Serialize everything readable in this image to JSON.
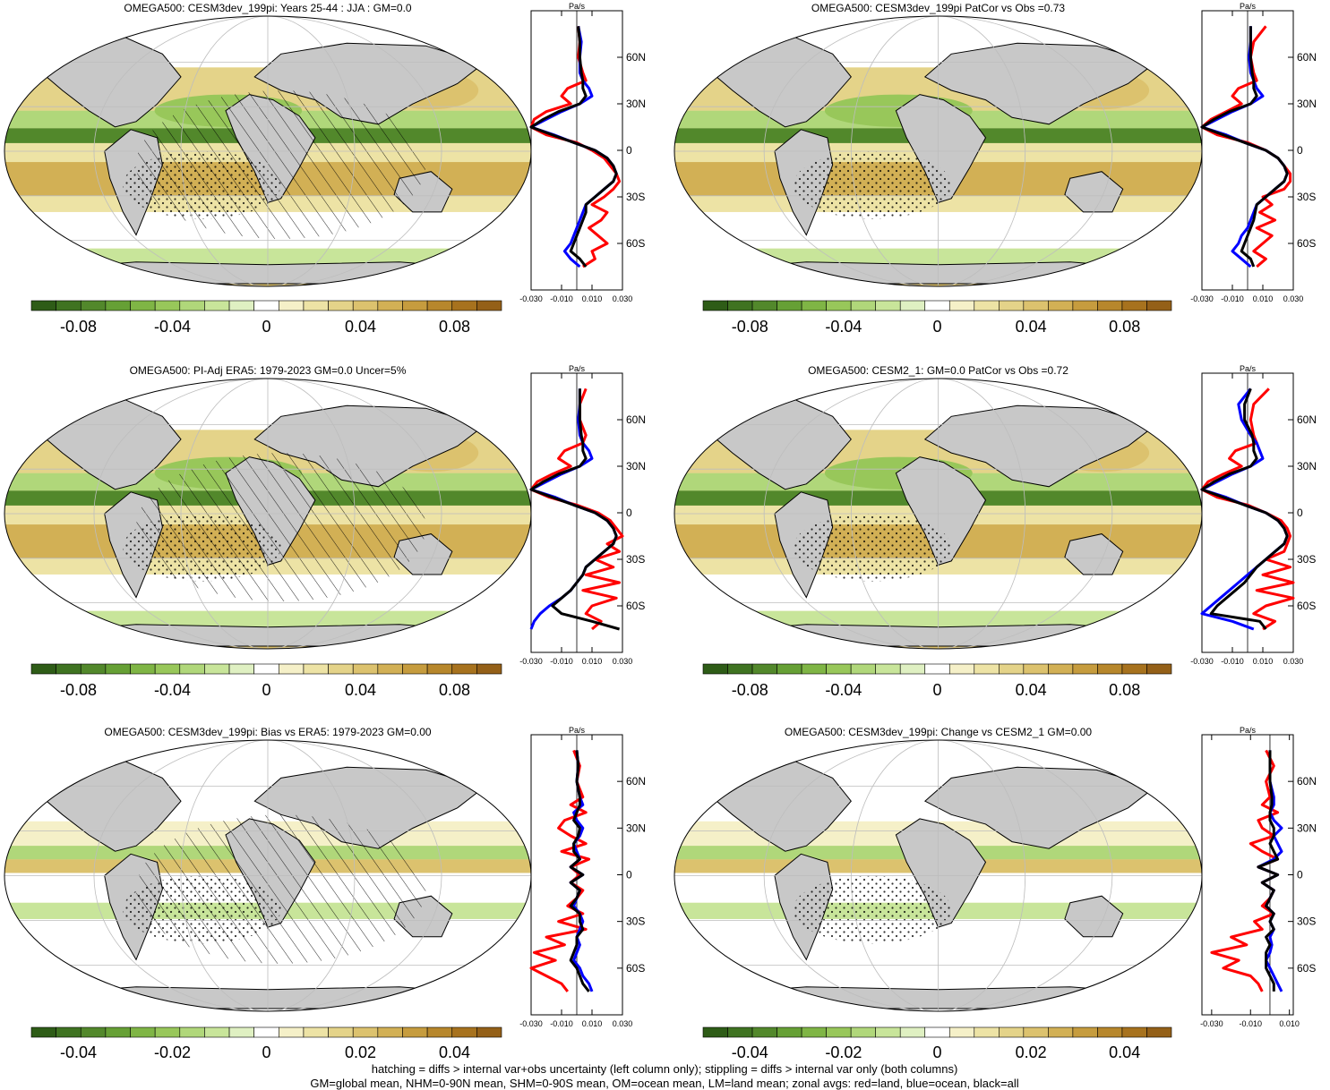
{
  "figure": {
    "footer_line1": "hatching = diffs > internal var+obs uncertainty (left column only); stippling = diffs > internal var only (both columns)",
    "footer_line2": "GM=global mean, NHM=0-90N mean, SHM=0-90S mean, OM=ocean mean, LM=land mean; zonal avgs: red=land, blue=ocean, black=all"
  },
  "colors": {
    "land_mask": "#c8c8c8",
    "zonal_land": "#ff0000",
    "zonal_ocean": "#0000ff",
    "zonal_all": "#000000",
    "palette": [
      "#2e5c17",
      "#3f7321",
      "#52882b",
      "#66a035",
      "#7fb545",
      "#98c75a",
      "#b0d77a",
      "#c8e59a",
      "#dff0c2",
      "#ffffff",
      "#f5f0c8",
      "#ede3a5",
      "#e4d389",
      "#dcc26e",
      "#d2b055",
      "#c69c3e",
      "#b7872c",
      "#a7721e",
      "#946018"
    ]
  },
  "chart_data": [
    {
      "type": "map",
      "title": "OMEGA500: CESM3dev_199pi: Years 25-44 : JJA : GM=0.0",
      "colorbar_ticks": [
        "-0.08",
        "-0.04",
        "0",
        "0.04",
        "0.08"
      ],
      "colorbar_range": [
        -0.1,
        0.1
      ],
      "hatching": true,
      "zonal": {
        "units": "Pa/s",
        "xlim": [
          -0.03,
          0.03
        ],
        "x_tick_labels": [
          "-0.030",
          "-0.010",
          "0.010",
          "0.030"
        ],
        "lat_tick_labels": [
          "60N",
          "30N",
          "0",
          "30S",
          "60S"
        ],
        "lat_ticks": [
          60,
          30,
          0,
          -30,
          -60
        ],
        "lat": [
          80,
          70,
          60,
          50,
          45,
          40,
          35,
          30,
          25,
          20,
          15,
          10,
          5,
          0,
          -5,
          -10,
          -15,
          -20,
          -25,
          -30,
          -35,
          -40,
          -45,
          -50,
          -55,
          -60,
          -65,
          -70,
          -75
        ],
        "land": [
          0.001,
          0.002,
          0.001,
          0.004,
          0.006,
          -0.006,
          -0.01,
          -0.004,
          -0.02,
          -0.028,
          -0.03,
          -0.02,
          0.0,
          0.01,
          0.018,
          0.022,
          0.026,
          0.028,
          0.024,
          0.018,
          0.01,
          0.02,
          0.016,
          0.008,
          0.014,
          0.02,
          0.01,
          0.012,
          0.004
        ],
        "ocean": [
          0.001,
          0.003,
          0.002,
          0.002,
          0.004,
          0.008,
          0.01,
          0.002,
          -0.01,
          -0.02,
          -0.03,
          -0.015,
          -0.002,
          0.012,
          0.02,
          0.024,
          0.026,
          0.024,
          0.018,
          0.012,
          0.006,
          0.004,
          0.002,
          0.0,
          -0.002,
          -0.004,
          -0.008,
          -0.004,
          0.002
        ],
        "all": [
          0.001,
          0.002,
          0.002,
          0.003,
          0.004,
          0.004,
          0.006,
          0.002,
          -0.012,
          -0.022,
          -0.03,
          -0.016,
          -0.002,
          0.012,
          0.02,
          0.024,
          0.026,
          0.024,
          0.018,
          0.012,
          0.006,
          0.006,
          0.004,
          0.002,
          0.0,
          -0.002,
          -0.004,
          0.002,
          0.006
        ]
      }
    },
    {
      "type": "map",
      "title": "OMEGA500: CESM3dev_199pi PatCor vs Obs =0.73",
      "colorbar_ticks": [
        "-0.08",
        "-0.04",
        "0",
        "0.04",
        "0.08"
      ],
      "colorbar_range": [
        -0.1,
        0.1
      ],
      "hatching": false,
      "zonal": {
        "units": "Pa/s",
        "xlim": [
          -0.03,
          0.03
        ],
        "x_tick_labels": [
          "-0.030",
          "-0.010",
          "0.010",
          "0.030"
        ],
        "lat_tick_labels": [
          "60N",
          "30N",
          "0",
          "30S",
          "60S"
        ],
        "lat_ticks": [
          60,
          30,
          0,
          -30,
          -60
        ],
        "lat": [
          80,
          70,
          60,
          50,
          45,
          40,
          35,
          30,
          25,
          20,
          15,
          10,
          5,
          0,
          -5,
          -10,
          -15,
          -20,
          -25,
          -30,
          -35,
          -40,
          -45,
          -50,
          -55,
          -60,
          -65,
          -70,
          -75
        ],
        "land": [
          0.012,
          0.004,
          0.002,
          0.004,
          0.006,
          -0.006,
          -0.01,
          -0.004,
          -0.014,
          -0.024,
          -0.03,
          -0.02,
          0.0,
          0.012,
          0.02,
          0.024,
          0.028,
          0.028,
          0.024,
          0.01,
          0.016,
          0.008,
          0.018,
          0.006,
          0.016,
          0.01,
          0.004,
          0.012,
          0.006
        ],
        "ocean": [
          0.002,
          0.002,
          0.001,
          0.002,
          0.004,
          0.006,
          0.01,
          0.002,
          -0.01,
          -0.02,
          -0.03,
          -0.014,
          -0.002,
          0.012,
          0.02,
          0.024,
          0.026,
          0.024,
          0.018,
          0.012,
          0.006,
          0.004,
          0.002,
          0.0,
          -0.004,
          -0.006,
          -0.01,
          -0.004,
          0.002
        ],
        "all": [
          0.002,
          0.002,
          0.002,
          0.003,
          0.004,
          0.004,
          0.006,
          0.002,
          -0.012,
          -0.022,
          -0.03,
          -0.016,
          -0.002,
          0.012,
          0.02,
          0.024,
          0.026,
          0.024,
          0.018,
          0.012,
          0.006,
          0.005,
          0.004,
          0.002,
          0.0,
          -0.002,
          -0.004,
          0.002,
          0.004
        ]
      }
    },
    {
      "type": "map",
      "title": "OMEGA500: PI-Adj ERA5: 1979-2023 GM=0.0 Uncer=5%",
      "colorbar_ticks": [
        "-0.08",
        "-0.04",
        "0",
        "0.04",
        "0.08"
      ],
      "colorbar_range": [
        -0.1,
        0.1
      ],
      "hatching": true,
      "zonal": {
        "units": "Pa/s",
        "xlim": [
          -0.03,
          0.03
        ],
        "x_tick_labels": [
          "-0.030",
          "-0.010",
          "0.010",
          "0.030"
        ],
        "lat_tick_labels": [
          "60N",
          "30N",
          "0",
          "30S",
          "60S"
        ],
        "lat_ticks": [
          60,
          30,
          0,
          -30,
          -60
        ],
        "lat": [
          80,
          70,
          60,
          50,
          45,
          40,
          35,
          30,
          25,
          20,
          15,
          10,
          5,
          0,
          -5,
          -10,
          -15,
          -20,
          -25,
          -30,
          -35,
          -40,
          -45,
          -50,
          -55,
          -60,
          -65,
          -70,
          -75
        ],
        "land": [
          0.006,
          0.002,
          0.002,
          0.006,
          0.004,
          -0.008,
          -0.012,
          -0.004,
          -0.016,
          -0.026,
          -0.03,
          -0.018,
          0.0,
          0.014,
          0.022,
          0.026,
          0.03,
          0.02,
          0.028,
          0.012,
          0.024,
          0.006,
          0.028,
          0.004,
          0.026,
          0.01,
          0.006,
          0.016,
          0.01
        ],
        "ocean": [
          0.002,
          0.002,
          0.001,
          0.002,
          0.004,
          0.008,
          0.01,
          0.002,
          -0.01,
          -0.02,
          -0.03,
          -0.014,
          -0.002,
          0.012,
          0.02,
          0.024,
          0.026,
          0.024,
          0.018,
          0.012,
          0.006,
          0.004,
          0.0,
          -0.004,
          -0.01,
          -0.018,
          -0.024,
          -0.028,
          -0.03
        ],
        "all": [
          0.002,
          0.002,
          0.002,
          0.003,
          0.004,
          0.004,
          0.006,
          0.002,
          -0.012,
          -0.022,
          -0.03,
          -0.016,
          -0.002,
          0.012,
          0.02,
          0.024,
          0.026,
          0.024,
          0.018,
          0.012,
          0.006,
          0.004,
          0.0,
          -0.004,
          -0.01,
          -0.016,
          -0.01,
          0.01,
          0.028
        ]
      }
    },
    {
      "type": "map",
      "title": "OMEGA500: CESM2_1: GM=0.0 PatCor vs Obs =0.72",
      "colorbar_ticks": [
        "-0.08",
        "-0.04",
        "0",
        "0.04",
        "0.08"
      ],
      "colorbar_range": [
        -0.1,
        0.1
      ],
      "hatching": false,
      "zonal": {
        "units": "Pa/s",
        "xlim": [
          -0.03,
          0.03
        ],
        "x_tick_labels": [
          "-0.030",
          "-0.010",
          "0.010",
          "0.030"
        ],
        "lat_tick_labels": [
          "60N",
          "30N",
          "0",
          "30S",
          "60S"
        ],
        "lat_ticks": [
          60,
          30,
          0,
          -30,
          -60
        ],
        "lat": [
          80,
          70,
          60,
          50,
          45,
          40,
          35,
          30,
          25,
          20,
          15,
          10,
          5,
          0,
          -5,
          -10,
          -15,
          -20,
          -25,
          -30,
          -35,
          -40,
          -45,
          -50,
          -55,
          -60,
          -65,
          -70,
          -75
        ],
        "land": [
          0.014,
          0.004,
          0.002,
          0.004,
          0.006,
          -0.008,
          -0.012,
          -0.004,
          -0.016,
          -0.026,
          -0.03,
          -0.02,
          0.0,
          0.012,
          0.022,
          0.026,
          0.028,
          0.026,
          0.024,
          0.012,
          0.028,
          0.01,
          0.03,
          0.006,
          0.03,
          0.012,
          0.004,
          0.018,
          0.01
        ],
        "ocean": [
          0.002,
          -0.006,
          -0.004,
          0.002,
          0.006,
          0.008,
          0.01,
          0.002,
          -0.01,
          -0.02,
          -0.03,
          -0.014,
          -0.002,
          0.012,
          0.02,
          0.024,
          0.026,
          0.024,
          0.018,
          0.012,
          0.006,
          0.0,
          -0.006,
          -0.012,
          -0.018,
          -0.024,
          -0.03,
          -0.01,
          0.004
        ],
        "all": [
          0.002,
          -0.002,
          -0.002,
          0.003,
          0.004,
          0.004,
          0.006,
          0.002,
          -0.012,
          -0.022,
          -0.03,
          -0.016,
          -0.002,
          0.012,
          0.02,
          0.024,
          0.026,
          0.024,
          0.018,
          0.012,
          0.006,
          0.002,
          -0.002,
          -0.008,
          -0.014,
          -0.02,
          -0.024,
          0.008,
          0.012
        ]
      }
    },
    {
      "type": "map",
      "title": "OMEGA500: CESM3dev_199pi: Bias vs ERA5: 1979-2023 GM=0.00",
      "colorbar_ticks": [
        "-0.04",
        "-0.02",
        "0",
        "0.02",
        "0.04"
      ],
      "colorbar_range": [
        -0.05,
        0.05
      ],
      "hatching": true,
      "zonal": {
        "units": "Pa/s",
        "xlim": [
          -0.03,
          0.03
        ],
        "x_tick_labels": [
          "-0.030",
          "-0.010",
          "0.010",
          "0.030"
        ],
        "lat_tick_labels": [
          "60N",
          "30N",
          "0",
          "30S",
          "60S"
        ],
        "lat_ticks": [
          60,
          30,
          0,
          -30,
          -60
        ],
        "lat": [
          80,
          70,
          60,
          50,
          45,
          40,
          35,
          30,
          25,
          20,
          15,
          10,
          5,
          0,
          -5,
          -10,
          -15,
          -20,
          -25,
          -30,
          -35,
          -40,
          -45,
          -50,
          -55,
          -60,
          -65,
          -70,
          -75
        ],
        "land": [
          -0.002,
          0.002,
          0.0,
          0.004,
          -0.004,
          0.006,
          -0.008,
          -0.012,
          -0.004,
          0.006,
          -0.01,
          0.008,
          -0.004,
          0.002,
          -0.004,
          0.004,
          0.0,
          -0.006,
          0.004,
          -0.012,
          0.006,
          -0.02,
          -0.008,
          -0.028,
          -0.014,
          -0.03,
          -0.02,
          -0.01,
          -0.006
        ],
        "ocean": [
          0.0,
          0.001,
          0.0,
          0.002,
          0.004,
          -0.002,
          0.0,
          0.004,
          0.002,
          -0.002,
          0.0,
          0.002,
          -0.004,
          0.004,
          -0.004,
          0.002,
          0.0,
          -0.002,
          0.002,
          0.004,
          0.002,
          0.0,
          0.002,
          0.0,
          -0.002,
          0.002,
          0.004,
          0.008,
          0.01
        ],
        "all": [
          0.0,
          0.001,
          0.0,
          0.002,
          0.002,
          0.0,
          -0.002,
          0.002,
          0.001,
          -0.002,
          -0.002,
          0.002,
          -0.004,
          0.004,
          -0.004,
          0.002,
          0.0,
          -0.004,
          0.002,
          0.002,
          0.004,
          0.0,
          0.0,
          -0.002,
          -0.004,
          0.0,
          0.002,
          0.004,
          0.008
        ]
      }
    },
    {
      "type": "map",
      "title": "OMEGA500: CESM3dev_199pi: Change vs CESM2_1 GM=0.00",
      "colorbar_ticks": [
        "-0.04",
        "-0.02",
        "0",
        "0.02",
        "0.04"
      ],
      "colorbar_range": [
        -0.05,
        0.05
      ],
      "hatching": false,
      "zonal": {
        "units": "Pa/s",
        "xlim": [
          -0.035,
          0.012
        ],
        "x_tick_labels": [
          "-0.030",
          "-0.010",
          "0.010"
        ],
        "lat_tick_labels": [
          "60N",
          "30N",
          "0",
          "30S",
          "60S"
        ],
        "lat_ticks": [
          60,
          30,
          0,
          -30,
          -60
        ],
        "lat": [
          80,
          70,
          60,
          50,
          45,
          40,
          35,
          30,
          25,
          20,
          15,
          10,
          5,
          0,
          -5,
          -10,
          -15,
          -20,
          -25,
          -30,
          -35,
          -40,
          -45,
          -50,
          -55,
          -60,
          -65,
          -70,
          -75
        ],
        "land": [
          -0.002,
          0.002,
          -0.002,
          0.0,
          -0.004,
          0.004,
          -0.006,
          -0.004,
          0.002,
          -0.01,
          -0.004,
          0.004,
          -0.006,
          0.004,
          -0.004,
          0.002,
          0.0,
          -0.004,
          0.002,
          -0.008,
          -0.004,
          -0.02,
          -0.012,
          -0.03,
          -0.016,
          -0.024,
          -0.01,
          -0.006,
          -0.004
        ],
        "ocean": [
          0.0,
          0.0,
          0.0,
          0.002,
          0.002,
          0.0,
          0.002,
          0.006,
          0.002,
          0.004,
          0.006,
          0.002,
          -0.006,
          0.004,
          -0.004,
          0.002,
          0.0,
          -0.002,
          0.002,
          0.0,
          0.002,
          0.0,
          0.001,
          0.0,
          -0.002,
          0.0,
          0.002,
          0.004,
          0.006
        ],
        "all": [
          0.0,
          0.0,
          0.0,
          0.001,
          0.001,
          0.0,
          0.0,
          0.002,
          0.002,
          0.0,
          0.002,
          0.004,
          -0.006,
          0.004,
          -0.004,
          0.002,
          0.0,
          -0.002,
          0.002,
          0.0,
          0.002,
          -0.002,
          0.0,
          -0.002,
          -0.002,
          -0.002,
          0.0,
          0.002,
          0.002
        ]
      }
    }
  ]
}
